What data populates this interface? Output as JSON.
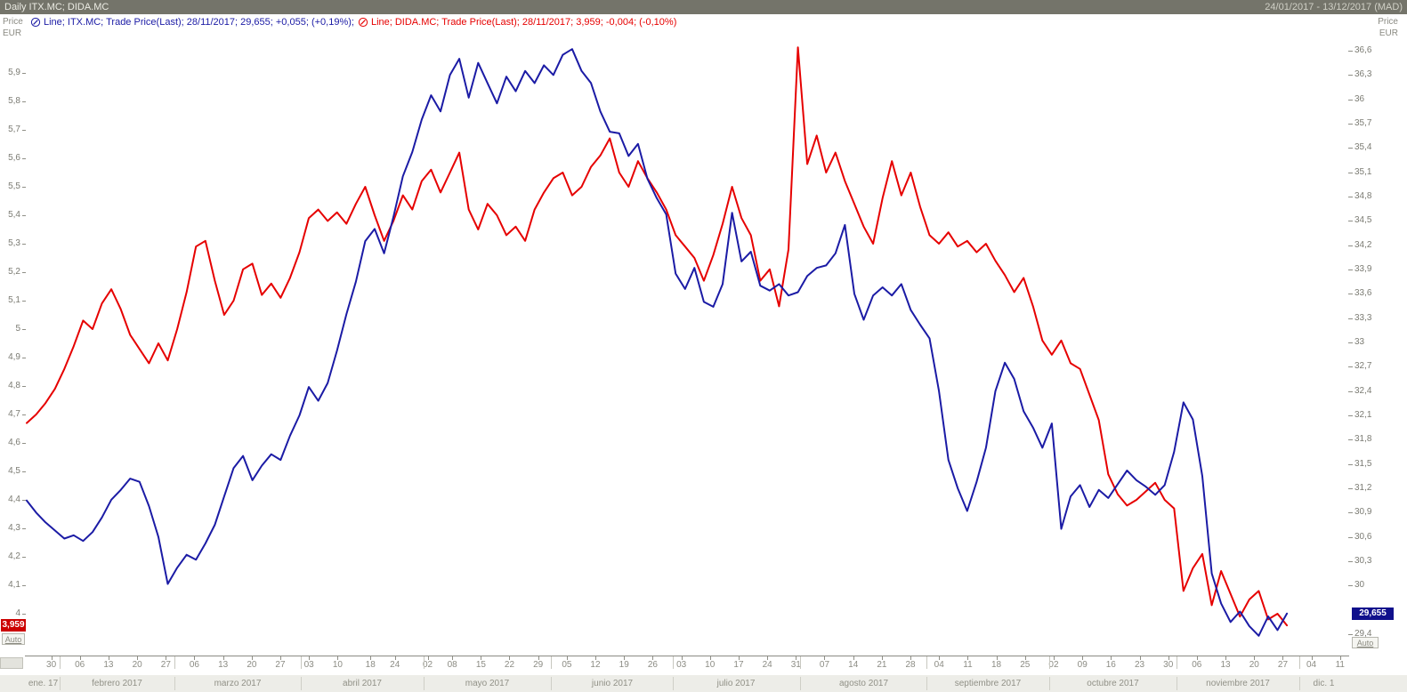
{
  "titlebar": {
    "title": "Daily ITX.MC; DIDA.MC",
    "range": "24/01/2017 - 13/12/2017 (MAD)"
  },
  "legend": [
    {
      "label": "Line; ITX.MC; Trade Price(Last); 28/11/2017; 29,655; +0,055; (+0,19%);",
      "color": "#1b1ba5"
    },
    {
      "label": "Line; DIDA.MC; Trade Price(Last); 28/11/2017; 3,959; -0,004; (-0,10%)",
      "color": "#e60000"
    }
  ],
  "axes": {
    "left": {
      "unit1": "Price",
      "unit2": "EUR",
      "auto": "Auto",
      "price_label": "3,959",
      "ticks": [
        [
          "5,9",
          5.9
        ],
        [
          "5,8",
          5.8
        ],
        [
          "5,7",
          5.7
        ],
        [
          "5,6",
          5.6
        ],
        [
          "5,5",
          5.5
        ],
        [
          "5,4",
          5.4
        ],
        [
          "5,3",
          5.3
        ],
        [
          "5,2",
          5.2
        ],
        [
          "5,1",
          5.1
        ],
        [
          "5",
          5.0
        ],
        [
          "4,9",
          4.9
        ],
        [
          "4,8",
          4.8
        ],
        [
          "4,7",
          4.7
        ],
        [
          "4,6",
          4.6
        ],
        [
          "4,5",
          4.5
        ],
        [
          "4,4",
          4.4
        ],
        [
          "4,3",
          4.3
        ],
        [
          "4,2",
          4.2
        ],
        [
          "4,1",
          4.1
        ],
        [
          "4",
          4.0
        ]
      ]
    },
    "right": {
      "unit1": "Price",
      "unit2": "EUR",
      "auto": "Auto",
      "price_label": "29,655",
      "ticks": [
        [
          "36,6",
          36.6
        ],
        [
          "36,3",
          36.3
        ],
        [
          "36",
          36.0
        ],
        [
          "35,7",
          35.7
        ],
        [
          "35,4",
          35.4
        ],
        [
          "35,1",
          35.1
        ],
        [
          "34,8",
          34.8
        ],
        [
          "34,5",
          34.5
        ],
        [
          "34,2",
          34.2
        ],
        [
          "33,9",
          33.9
        ],
        [
          "33,6",
          33.6
        ],
        [
          "33,3",
          33.3
        ],
        [
          "33",
          33.0
        ],
        [
          "32,7",
          32.7
        ],
        [
          "32,4",
          32.4
        ],
        [
          "32,1",
          32.1
        ],
        [
          "31,8",
          31.8
        ],
        [
          "31,5",
          31.5
        ],
        [
          "31,2",
          31.2
        ],
        [
          "30,9",
          30.9
        ],
        [
          "30,6",
          30.6
        ],
        [
          "30,3",
          30.3
        ],
        [
          "30",
          30.0
        ],
        [
          "29,4",
          29.4
        ]
      ]
    }
  },
  "xaxis": {
    "day_ticks": [
      [
        "30",
        0.0186
      ],
      [
        "06",
        0.0402
      ],
      [
        "13",
        0.0619
      ],
      [
        "20",
        0.0836
      ],
      [
        "27",
        0.1053
      ],
      [
        "06",
        0.1269
      ],
      [
        "13",
        0.1486
      ],
      [
        "20",
        0.1703
      ],
      [
        "27",
        0.1919
      ],
      [
        "03",
        0.2136
      ],
      [
        "10",
        0.2353
      ],
      [
        "18",
        0.2601
      ],
      [
        "24",
        0.2786
      ],
      [
        "02",
        0.3034
      ],
      [
        "08",
        0.322
      ],
      [
        "15",
        0.3437
      ],
      [
        "22",
        0.3653
      ],
      [
        "29",
        0.387
      ],
      [
        "05",
        0.4087
      ],
      [
        "12",
        0.4303
      ],
      [
        "19",
        0.452
      ],
      [
        "26",
        0.4737
      ],
      [
        "03",
        0.4954
      ],
      [
        "10",
        0.517
      ],
      [
        "17",
        0.5387
      ],
      [
        "24",
        0.5604
      ],
      [
        "31",
        0.582
      ],
      [
        "07",
        0.6037
      ],
      [
        "14",
        0.6254
      ],
      [
        "21",
        0.6471
      ],
      [
        "28",
        0.6687
      ],
      [
        "04",
        0.6904
      ],
      [
        "11",
        0.7121
      ],
      [
        "18",
        0.7337
      ],
      [
        "25",
        0.7554
      ],
      [
        "02",
        0.7771
      ],
      [
        "09",
        0.7988
      ],
      [
        "16",
        0.8204
      ],
      [
        "23",
        0.8421
      ],
      [
        "30",
        0.8638
      ],
      [
        "06",
        0.8854
      ],
      [
        "13",
        0.9071
      ],
      [
        "20",
        0.9288
      ],
      [
        "27",
        0.9505
      ],
      [
        "04",
        0.9721
      ],
      [
        "11",
        0.9938
      ]
    ],
    "months": [
      [
        "ene. 17",
        0.0,
        0.0248
      ],
      [
        "febrero 2017",
        0.0248,
        0.1115
      ],
      [
        "marzo 2017",
        0.1115,
        0.2074
      ],
      [
        "abril 2017",
        0.2074,
        0.3003
      ],
      [
        "mayo 2017",
        0.3003,
        0.3963
      ],
      [
        "junio 2017",
        0.3963,
        0.4892
      ],
      [
        "julio 2017",
        0.4892,
        0.5851
      ],
      [
        "agosto 2017",
        0.5851,
        0.6811
      ],
      [
        "septiembre 2017",
        0.6811,
        0.774
      ],
      [
        "octubre 2017",
        0.774,
        0.87
      ],
      [
        "noviembre 2017",
        0.87,
        0.9628
      ],
      [
        "dic. 1",
        0.9628,
        1.0
      ]
    ]
  },
  "chart_data": {
    "type": "line",
    "title": "Daily ITX.MC; DIDA.MC",
    "x_start": "24/01/2017",
    "x_end": "13/12/2017",
    "last_data_date": "28/11/2017",
    "data_end_fraction": 0.9536,
    "grid": false,
    "left_axis": {
      "min": 3.8531,
      "max": 6.0438,
      "tick_step": 0.1,
      "belongs_to": "DIDA.MC"
    },
    "right_axis": {
      "min": 29.1366,
      "max": 36.8305,
      "tick_step": 0.3,
      "belongs_to": "ITX.MC"
    },
    "series": [
      {
        "name": "ITX.MC",
        "axis": "right",
        "color": "#1b1ba5",
        "last_value": 29.655,
        "last_label": "29,655",
        "change": "+0,055",
        "change_pct": "+0,19%",
        "values": [
          31.05,
          30.9,
          30.78,
          30.68,
          30.58,
          30.62,
          30.55,
          30.66,
          30.84,
          31.06,
          31.18,
          31.32,
          31.28,
          30.98,
          30.6,
          30.02,
          30.22,
          30.38,
          30.32,
          30.52,
          30.75,
          31.1,
          31.45,
          31.6,
          31.3,
          31.48,
          31.62,
          31.55,
          31.85,
          32.1,
          32.45,
          32.28,
          32.5,
          32.9,
          33.35,
          33.75,
          34.25,
          34.4,
          34.1,
          34.55,
          35.05,
          35.35,
          35.75,
          36.05,
          35.85,
          36.3,
          36.5,
          36.02,
          36.45,
          36.2,
          35.95,
          36.28,
          36.1,
          36.35,
          36.2,
          36.42,
          36.3,
          36.55,
          36.62,
          36.35,
          36.2,
          35.85,
          35.6,
          35.58,
          35.3,
          35.45,
          35.02,
          34.78,
          34.58,
          33.85,
          33.66,
          33.92,
          33.5,
          33.44,
          33.72,
          34.6,
          34.0,
          34.12,
          33.7,
          33.64,
          33.72,
          33.58,
          33.62,
          33.82,
          33.92,
          33.95,
          34.1,
          34.45,
          33.6,
          33.28,
          33.58,
          33.68,
          33.58,
          33.72,
          33.4,
          33.22,
          33.05,
          32.4,
          31.55,
          31.2,
          30.92,
          31.28,
          31.7,
          32.4,
          32.75,
          32.55,
          32.15,
          31.95,
          31.7,
          32.0,
          30.7,
          31.1,
          31.24,
          30.97,
          31.18,
          31.08,
          31.25,
          31.42,
          31.3,
          31.22,
          31.12,
          31.24,
          31.65,
          32.26,
          32.05,
          31.35,
          30.15,
          29.78,
          29.55,
          29.68,
          29.5,
          29.38,
          29.62,
          29.45,
          29.655
        ]
      },
      {
        "name": "DIDA.MC",
        "axis": "left",
        "color": "#e60000",
        "last_value": 3.959,
        "last_label": "3,959",
        "change": "-0,004",
        "change_pct": "-0,10%",
        "values": [
          4.67,
          4.7,
          4.74,
          4.79,
          4.86,
          4.94,
          5.03,
          5.0,
          5.09,
          5.14,
          5.07,
          4.98,
          4.93,
          4.88,
          4.95,
          4.89,
          5.0,
          5.13,
          5.29,
          5.31,
          5.17,
          5.05,
          5.1,
          5.21,
          5.23,
          5.12,
          5.16,
          5.11,
          5.18,
          5.27,
          5.39,
          5.42,
          5.38,
          5.41,
          5.37,
          5.44,
          5.5,
          5.4,
          5.31,
          5.38,
          5.47,
          5.42,
          5.52,
          5.56,
          5.48,
          5.55,
          5.62,
          5.42,
          5.35,
          5.44,
          5.4,
          5.33,
          5.36,
          5.31,
          5.42,
          5.48,
          5.53,
          5.55,
          5.47,
          5.5,
          5.57,
          5.61,
          5.67,
          5.55,
          5.5,
          5.59,
          5.53,
          5.48,
          5.42,
          5.33,
          5.29,
          5.25,
          5.17,
          5.26,
          5.37,
          5.5,
          5.39,
          5.33,
          5.17,
          5.21,
          5.08,
          5.28,
          5.99,
          5.58,
          5.68,
          5.55,
          5.62,
          5.52,
          5.44,
          5.36,
          5.3,
          5.46,
          5.59,
          5.47,
          5.55,
          5.43,
          5.33,
          5.3,
          5.34,
          5.29,
          5.31,
          5.27,
          5.3,
          5.24,
          5.19,
          5.13,
          5.18,
          5.08,
          4.96,
          4.91,
          4.96,
          4.88,
          4.86,
          4.77,
          4.68,
          4.49,
          4.42,
          4.38,
          4.4,
          4.43,
          4.46,
          4.4,
          4.37,
          4.08,
          4.16,
          4.21,
          4.03,
          4.15,
          4.07,
          3.99,
          4.05,
          4.08,
          3.98,
          4.0,
          3.959
        ]
      }
    ]
  }
}
